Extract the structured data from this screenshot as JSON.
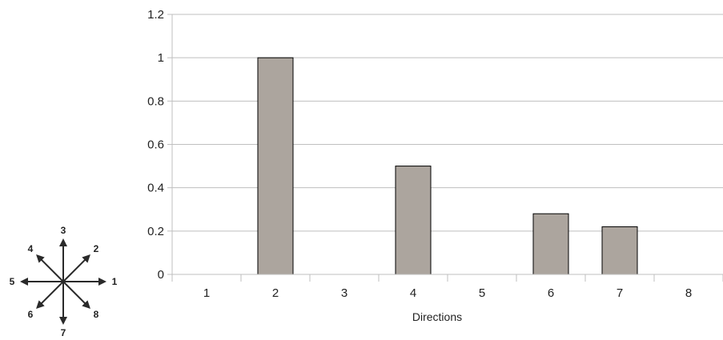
{
  "chart_data": {
    "type": "bar",
    "categories": [
      "1",
      "2",
      "3",
      "4",
      "5",
      "6",
      "7",
      "8"
    ],
    "values": [
      0,
      1,
      0,
      0.5,
      0,
      0.28,
      0.22,
      0
    ],
    "title": "",
    "xlabel": "Directions",
    "ylabel": "",
    "ylim": [
      0,
      1.2
    ],
    "yticks": [
      "0",
      "0.2",
      "0.4",
      "0.6",
      "0.8",
      "1",
      "1.2"
    ],
    "grid": "horizontal",
    "legend": "none",
    "bar_color": "#aca59e",
    "bar_edge_color": "#000000",
    "grid_color": "#bfbfbf"
  },
  "compass": {
    "labels": [
      "1",
      "2",
      "3",
      "4",
      "5",
      "6",
      "7",
      "8"
    ]
  }
}
